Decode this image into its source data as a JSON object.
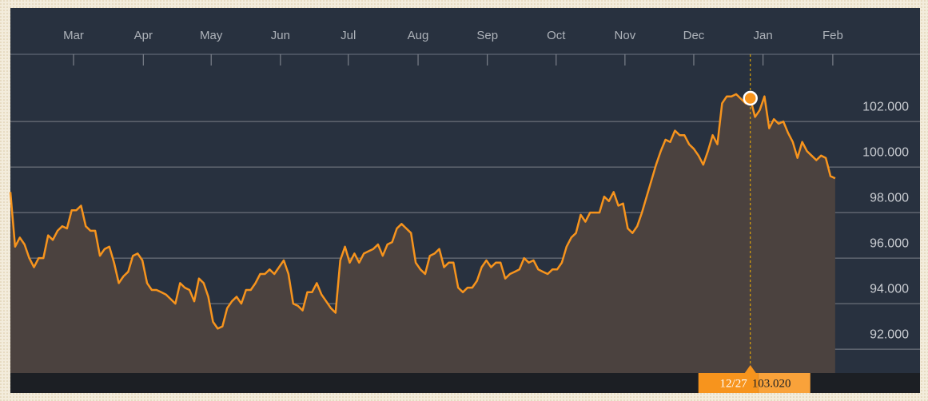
{
  "chart_data": {
    "type": "line",
    "xticks": [
      {
        "value": 13.4,
        "label": "Mar"
      },
      {
        "value": 28.2,
        "label": "Apr"
      },
      {
        "value": 42.6,
        "label": "May"
      },
      {
        "value": 57.3,
        "label": "Jun"
      },
      {
        "value": 71.7,
        "label": "Jul"
      },
      {
        "value": 86.5,
        "label": "Aug"
      },
      {
        "value": 101.2,
        "label": "Sep"
      },
      {
        "value": 115.8,
        "label": "Oct"
      },
      {
        "value": 130.4,
        "label": "Nov"
      },
      {
        "value": 145.0,
        "label": "Dec"
      },
      {
        "value": 159.7,
        "label": "Jan"
      },
      {
        "value": 174.5,
        "label": "Feb"
      }
    ],
    "xlim": [
      0,
      193
    ],
    "ylim": [
      90.95,
      104.95
    ],
    "yticks": [
      {
        "value": 92,
        "label": "92.000"
      },
      {
        "value": 94,
        "label": "94.000"
      },
      {
        "value": 96,
        "label": "96.000"
      },
      {
        "value": 98,
        "label": "98.000"
      },
      {
        "value": 100,
        "label": "100.000"
      },
      {
        "value": 102,
        "label": "102.000"
      }
    ],
    "grid": true,
    "color": "#f7941d",
    "values": [
      98.9,
      96.5,
      96.9,
      96.6,
      96.0,
      95.6,
      96.0,
      96.0,
      97.0,
      96.8,
      97.2,
      97.4,
      97.3,
      98.1,
      98.1,
      98.3,
      97.4,
      97.2,
      97.2,
      96.1,
      96.4,
      96.5,
      95.8,
      94.9,
      95.2,
      95.4,
      96.1,
      96.2,
      95.9,
      94.9,
      94.6,
      94.6,
      94.5,
      94.4,
      94.2,
      94.0,
      94.9,
      94.7,
      94.6,
      94.1,
      95.1,
      94.9,
      94.3,
      93.2,
      92.9,
      93.0,
      93.8,
      94.1,
      94.3,
      94.0,
      94.6,
      94.6,
      94.9,
      95.3,
      95.3,
      95.5,
      95.3,
      95.6,
      95.9,
      95.3,
      94.0,
      93.9,
      93.7,
      94.5,
      94.5,
      94.9,
      94.4,
      94.1,
      93.8,
      93.6,
      95.9,
      96.5,
      95.8,
      96.2,
      95.8,
      96.2,
      96.3,
      96.4,
      96.6,
      96.1,
      96.6,
      96.7,
      97.3,
      97.5,
      97.3,
      97.1,
      95.8,
      95.5,
      95.3,
      96.1,
      96.2,
      96.4,
      95.6,
      95.8,
      95.8,
      94.7,
      94.5,
      94.7,
      94.7,
      95.0,
      95.6,
      95.9,
      95.6,
      95.8,
      95.8,
      95.1,
      95.3,
      95.4,
      95.5,
      96.0,
      95.8,
      95.9,
      95.5,
      95.4,
      95.3,
      95.5,
      95.5,
      95.8,
      96.5,
      96.9,
      97.1,
      97.9,
      97.6,
      98.0,
      98.0,
      98.0,
      98.7,
      98.5,
      98.9,
      98.3,
      98.4,
      97.3,
      97.1,
      97.4,
      98.0,
      98.7,
      99.4,
      100.1,
      100.7,
      101.2,
      101.1,
      101.6,
      101.4,
      101.4,
      101.0,
      100.8,
      100.5,
      100.1,
      100.7,
      101.4,
      101.0,
      102.8,
      103.1,
      103.1,
      103.2,
      103.0,
      102.8,
      103.02,
      102.2,
      102.5,
      103.1,
      101.7,
      102.1,
      101.9,
      102.0,
      101.5,
      101.1,
      100.4,
      101.1,
      100.7,
      100.5,
      100.3,
      100.5,
      100.4,
      99.6,
      99.5
    ],
    "tracker": {
      "index": 157,
      "date": "12/27",
      "value": 103.02,
      "value_label": "103.020"
    }
  }
}
